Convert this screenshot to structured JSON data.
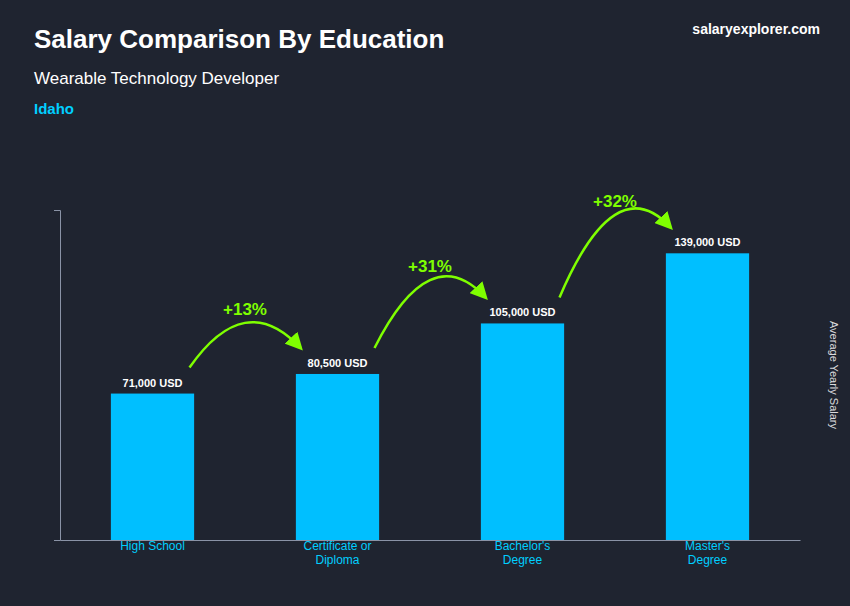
{
  "chart_data": {
    "type": "bar",
    "title": "Salary Comparison By Education",
    "subtitle": [
      "Wearable Technology Developer",
      "Idaho"
    ],
    "source": "salaryexplorer.com",
    "categories": [
      "High School",
      "Certificate or\nDiploma",
      "Bachelor's\nDegree",
      "Master's\nDegree"
    ],
    "values": [
      71000,
      80500,
      105000,
      139000
    ],
    "value_labels": [
      "71,000 USD",
      "80,500 USD",
      "105,000 USD",
      "139,000 USD"
    ],
    "data_labels": true,
    "color": "#00BFFF",
    "annotations": [
      {
        "text": "+13%",
        "color": "#7FFF00"
      },
      {
        "text": "+31%",
        "color": "#7FFF00"
      },
      {
        "text": "+32%",
        "color": "#7FFF00"
      }
    ],
    "ylabel": "Average Yearly Salary",
    "ylim": [
      0,
      160000
    ],
    "yticks": [],
    "tick_labels": "x",
    "grid": false
  }
}
